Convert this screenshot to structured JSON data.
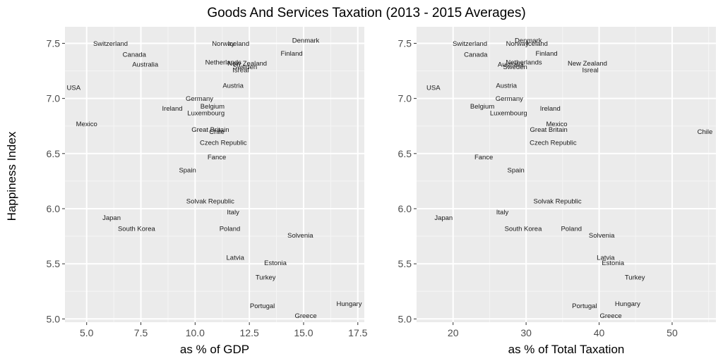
{
  "chart_data": {
    "type": "scatter",
    "title": "Goods And Services Taxation (2013 - 2015 Averages)",
    "ylabel": "Happiness Index",
    "panels": [
      {
        "xlabel": "as % of GDP",
        "xlim": [
          4.0,
          17.8
        ],
        "ylim": [
          4.97,
          7.65
        ],
        "xticks": [
          5.0,
          7.5,
          10.0,
          12.5,
          15.0,
          17.5
        ],
        "xtick_labels": [
          "5.0",
          "7.5",
          "10.0",
          "12.5",
          "15.0",
          "17.5"
        ],
        "yticks": [
          5.0,
          5.5,
          6.0,
          6.5,
          7.0,
          7.5
        ],
        "ytick_labels": [
          "5.0",
          "5.5",
          "6.0",
          "6.5",
          "7.0",
          "7.5"
        ],
        "grid": true,
        "points": [
          {
            "label": "Switzerland",
            "x": 6.1,
            "y": 7.5
          },
          {
            "label": "Canada",
            "x": 7.2,
            "y": 7.4
          },
          {
            "label": "Australia",
            "x": 7.7,
            "y": 7.31
          },
          {
            "label": "USA",
            "x": 4.4,
            "y": 7.1
          },
          {
            "label": "Mexico",
            "x": 5.0,
            "y": 6.77
          },
          {
            "label": "Ireland",
            "x": 8.95,
            "y": 6.91
          },
          {
            "label": "Germany",
            "x": 10.2,
            "y": 7.0
          },
          {
            "label": "Belgium",
            "x": 10.8,
            "y": 6.93
          },
          {
            "label": "Luxembourg",
            "x": 10.5,
            "y": 6.87
          },
          {
            "label": "Norway",
            "x": 11.3,
            "y": 7.5
          },
          {
            "label": "Iceland",
            "x": 12.0,
            "y": 7.5
          },
          {
            "label": "Denmark",
            "x": 15.1,
            "y": 7.53
          },
          {
            "label": "Finland",
            "x": 14.45,
            "y": 7.41
          },
          {
            "label": "Netherlands",
            "x": 11.3,
            "y": 7.33
          },
          {
            "label": "New Zealand",
            "x": 12.4,
            "y": 7.32
          },
          {
            "label": "Sweden",
            "x": 12.3,
            "y": 7.29
          },
          {
            "label": "Isreal",
            "x": 12.1,
            "y": 7.26
          },
          {
            "label": "Austria",
            "x": 11.75,
            "y": 7.12
          },
          {
            "label": "Great Britain",
            "x": 10.7,
            "y": 6.72
          },
          {
            "label": "Chile",
            "x": 11.0,
            "y": 6.7
          },
          {
            "label": "Czech Republic",
            "x": 11.3,
            "y": 6.6
          },
          {
            "label": "Fance",
            "x": 11.0,
            "y": 6.47
          },
          {
            "label": "Spain",
            "x": 9.65,
            "y": 6.35
          },
          {
            "label": "Solvak Republic",
            "x": 10.7,
            "y": 6.07
          },
          {
            "label": "Italy",
            "x": 11.75,
            "y": 5.97
          },
          {
            "label": "Poland",
            "x": 11.6,
            "y": 5.82
          },
          {
            "label": "Japan",
            "x": 6.15,
            "y": 5.92
          },
          {
            "label": "South Korea",
            "x": 7.3,
            "y": 5.82
          },
          {
            "label": "Solvenia",
            "x": 14.85,
            "y": 5.76
          },
          {
            "label": "Latvia",
            "x": 11.85,
            "y": 5.56
          },
          {
            "label": "Estonia",
            "x": 13.7,
            "y": 5.51
          },
          {
            "label": "Turkey",
            "x": 13.25,
            "y": 5.38
          },
          {
            "label": "Portugal",
            "x": 13.1,
            "y": 5.12
          },
          {
            "label": "Hungary",
            "x": 17.1,
            "y": 5.14
          },
          {
            "label": "Greece",
            "x": 15.1,
            "y": 5.03
          }
        ]
      },
      {
        "xlabel": "as % of Total Taxation",
        "xlim": [
          15.0,
          56.0
        ],
        "ylim": [
          4.97,
          7.65
        ],
        "xticks": [
          20,
          30,
          40,
          50
        ],
        "xtick_labels": [
          "20",
          "30",
          "40",
          "50"
        ],
        "yticks": [
          5.0,
          5.5,
          6.0,
          6.5,
          7.0,
          7.5
        ],
        "ytick_labels": [
          "5.0",
          "5.5",
          "6.0",
          "6.5",
          "7.0",
          "7.5"
        ],
        "grid": true,
        "points": [
          {
            "label": "Switzerland",
            "x": 22.3,
            "y": 7.5
          },
          {
            "label": "Canada",
            "x": 23.1,
            "y": 7.4
          },
          {
            "label": "Australia",
            "x": 27.9,
            "y": 7.31
          },
          {
            "label": "USA",
            "x": 17.3,
            "y": 7.1
          },
          {
            "label": "Austria",
            "x": 27.3,
            "y": 7.12
          },
          {
            "label": "Germany",
            "x": 27.7,
            "y": 7.0
          },
          {
            "label": "Belgium",
            "x": 24.0,
            "y": 6.93
          },
          {
            "label": "Luxembourg",
            "x": 27.6,
            "y": 6.87
          },
          {
            "label": "Ireland",
            "x": 33.3,
            "y": 6.91
          },
          {
            "label": "Mexico",
            "x": 34.2,
            "y": 6.77
          },
          {
            "label": "Great Britain",
            "x": 33.1,
            "y": 6.72
          },
          {
            "label": "Chile",
            "x": 54.5,
            "y": 6.7
          },
          {
            "label": "Czech Republic",
            "x": 33.7,
            "y": 6.6
          },
          {
            "label": "Fance",
            "x": 24.2,
            "y": 6.47
          },
          {
            "label": "Spain",
            "x": 28.6,
            "y": 6.35
          },
          {
            "label": "Solvak Republic",
            "x": 34.3,
            "y": 6.07
          },
          {
            "label": "Italy",
            "x": 26.75,
            "y": 5.97
          },
          {
            "label": "Japan",
            "x": 18.7,
            "y": 5.92
          },
          {
            "label": "South Korea",
            "x": 29.6,
            "y": 5.82
          },
          {
            "label": "Poland",
            "x": 36.2,
            "y": 5.82
          },
          {
            "label": "Solvenia",
            "x": 40.35,
            "y": 5.76
          },
          {
            "label": "Latvia",
            "x": 40.9,
            "y": 5.56
          },
          {
            "label": "Estonia",
            "x": 41.9,
            "y": 5.51
          },
          {
            "label": "Turkey",
            "x": 44.9,
            "y": 5.38
          },
          {
            "label": "Portugal",
            "x": 38.0,
            "y": 5.12
          },
          {
            "label": "Hungary",
            "x": 43.9,
            "y": 5.14
          },
          {
            "label": "Greece",
            "x": 41.6,
            "y": 5.03
          },
          {
            "label": "Denmark",
            "x": 30.3,
            "y": 7.53
          },
          {
            "label": "Norway",
            "x": 28.8,
            "y": 7.5
          },
          {
            "label": "Iceland",
            "x": 31.5,
            "y": 7.5
          },
          {
            "label": "Finland",
            "x": 32.8,
            "y": 7.41
          },
          {
            "label": "Netherlands",
            "x": 29.7,
            "y": 7.33
          },
          {
            "label": "Sweden",
            "x": 28.5,
            "y": 7.29
          },
          {
            "label": "New Zealand",
            "x": 38.4,
            "y": 7.32
          },
          {
            "label": "Isreal",
            "x": 38.8,
            "y": 7.26
          }
        ]
      }
    ]
  },
  "colors": {
    "panel_background": "#ebebeb",
    "grid_major": "#ffffff",
    "grid_minor": "#f5f5f5",
    "tick_text": "#4d4d4d",
    "label_text": "#1a1a1a"
  }
}
